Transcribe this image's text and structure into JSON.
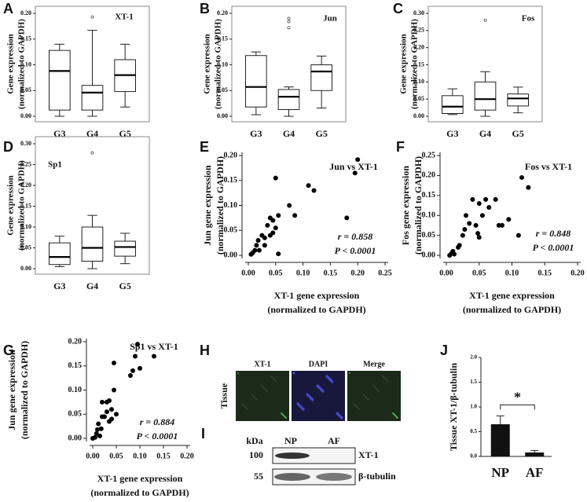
{
  "chart_data": [
    {
      "type": "box",
      "panel": "A",
      "title": "XT-1",
      "ylabel": [
        "Gene expression",
        "(normalized to GAPDH)"
      ],
      "categories": [
        "G3",
        "G4",
        "G5"
      ],
      "boxes": [
        {
          "whislo": 0.0,
          "q1": 0.012,
          "med": 0.088,
          "q3": 0.128,
          "whishi": 0.14,
          "fliers": []
        },
        {
          "whislo": 0.0,
          "q1": 0.012,
          "med": 0.046,
          "q3": 0.06,
          "whishi": 0.167,
          "fliers": [
            0.193
          ]
        },
        {
          "whislo": 0.018,
          "q1": 0.048,
          "med": 0.08,
          "q3": 0.11,
          "whishi": 0.14,
          "fliers": []
        }
      ],
      "ylim": [
        0,
        0.2
      ],
      "yticks": [
        {
          "value": 0,
          "label": "0.00"
        },
        {
          "value": 0.05,
          "label": "0.05"
        },
        {
          "value": 0.1,
          "label": "0.10"
        },
        {
          "value": 0.15,
          "label": "0.15"
        },
        {
          "value": 0.2,
          "label": "0.20"
        }
      ]
    },
    {
      "type": "box",
      "panel": "B",
      "title": "Jun",
      "ylabel": [
        "Gene expression",
        "(normalized to GAPDH)"
      ],
      "categories": [
        "G3",
        "G4",
        "G5"
      ],
      "boxes": [
        {
          "whislo": 0.003,
          "q1": 0.018,
          "med": 0.057,
          "q3": 0.118,
          "whishi": 0.125,
          "fliers": []
        },
        {
          "whislo": 0.0,
          "q1": 0.013,
          "med": 0.038,
          "q3": 0.052,
          "whishi": 0.057,
          "fliers": [
            0.19,
            0.184,
            0.172
          ]
        },
        {
          "whislo": 0.016,
          "q1": 0.05,
          "med": 0.087,
          "q3": 0.1,
          "whishi": 0.117,
          "fliers": []
        }
      ],
      "ylim": [
        0,
        0.2
      ],
      "yticks": [
        {
          "value": 0,
          "label": "0.00"
        },
        {
          "value": 0.05,
          "label": "0.05"
        },
        {
          "value": 0.1,
          "label": "0.10"
        },
        {
          "value": 0.15,
          "label": "0.15"
        },
        {
          "value": 0.2,
          "label": "0.20"
        }
      ]
    },
    {
      "type": "box",
      "panel": "C",
      "title": "Fos",
      "ylabel": [
        "Gene expression",
        "(normalized to GAPDH)"
      ],
      "categories": [
        "G3",
        "G4",
        "G5"
      ],
      "boxes": [
        {
          "whislo": 0.005,
          "q1": 0.008,
          "med": 0.028,
          "q3": 0.06,
          "whishi": 0.08,
          "fliers": []
        },
        {
          "whislo": 0.0,
          "q1": 0.018,
          "med": 0.05,
          "q3": 0.1,
          "whishi": 0.13,
          "fliers": [
            0.28
          ]
        },
        {
          "whislo": 0.01,
          "q1": 0.03,
          "med": 0.052,
          "q3": 0.065,
          "whishi": 0.085,
          "fliers": []
        }
      ],
      "ylim": [
        0,
        0.3
      ],
      "yticks": [
        {
          "value": 0,
          "label": "0.00"
        },
        {
          "value": 0.05,
          "label": "0.05"
        },
        {
          "value": 0.1,
          "label": "0.10"
        },
        {
          "value": 0.15,
          "label": "0.15"
        },
        {
          "value": 0.2,
          "label": "0.20"
        },
        {
          "value": 0.25,
          "label": "0.25"
        },
        {
          "value": 0.3,
          "label": "0.30"
        }
      ]
    },
    {
      "type": "box",
      "panel": "D",
      "title": "Sp1",
      "ylabel": [
        "Gene expression",
        "(normalized to GAPDH)"
      ],
      "categories": [
        "G3",
        "G4",
        "G5"
      ],
      "boxes": [
        {
          "whislo": 0.005,
          "q1": 0.01,
          "med": 0.028,
          "q3": 0.062,
          "whishi": 0.078,
          "fliers": []
        },
        {
          "whislo": 0.0,
          "q1": 0.018,
          "med": 0.05,
          "q3": 0.1,
          "whishi": 0.128,
          "fliers": [
            0.278
          ]
        },
        {
          "whislo": 0.012,
          "q1": 0.03,
          "med": 0.052,
          "q3": 0.066,
          "whishi": 0.085,
          "fliers": []
        }
      ],
      "ylim": [
        0,
        0.3
      ],
      "yticks": [
        {
          "value": 0,
          "label": "0.00"
        },
        {
          "value": 0.05,
          "label": "0.05"
        },
        {
          "value": 0.1,
          "label": "0.10"
        },
        {
          "value": 0.15,
          "label": "0.15"
        },
        {
          "value": 0.2,
          "label": "0.20"
        },
        {
          "value": 0.25,
          "label": "0.25"
        },
        {
          "value": 0.3,
          "label": "0.30"
        }
      ]
    },
    {
      "type": "scatter",
      "panel": "E",
      "title": "Jun vs XT-1",
      "annotations": [
        "r = 0.858",
        "P < 0.0001"
      ],
      "xlabel": [
        "XT-1 gene expression",
        "(normalized to GAPDH)"
      ],
      "ylabel": [
        "Jun gene expression",
        "(normalized to GAPDH)"
      ],
      "x": [
        0.005,
        0.008,
        0.012,
        0.015,
        0.018,
        0.02,
        0.025,
        0.03,
        0.035,
        0.04,
        0.045,
        0.045,
        0.05,
        0.05,
        0.055,
        0.055,
        0.075,
        0.085,
        0.11,
        0.12,
        0.18,
        0.195,
        0.2,
        0.04,
        0.03
      ],
      "values": [
        0.002,
        0.005,
        0.01,
        0.02,
        0.03,
        0.01,
        0.04,
        0.02,
        0.06,
        0.075,
        0.07,
        0.045,
        0.155,
        0.055,
        0.003,
        0.08,
        0.1,
        0.08,
        0.14,
        0.13,
        0.075,
        0.165,
        0.192,
        0.04,
        0.035
      ],
      "xlim": [
        0,
        0.25
      ],
      "xticks": [
        {
          "value": 0,
          "label": "0.00"
        },
        {
          "value": 0.05,
          "label": "0.05"
        },
        {
          "value": 0.1,
          "label": "0.10"
        },
        {
          "value": 0.15,
          "label": "0.15"
        },
        {
          "value": 0.2,
          "label": "0.20"
        },
        {
          "value": 0.25,
          "label": "0.25"
        }
      ],
      "ylim": [
        0,
        0.2
      ],
      "yticks": [
        {
          "value": 0,
          "label": "0.00"
        },
        {
          "value": 0.05,
          "label": "0.05"
        },
        {
          "value": 0.1,
          "label": "0.10"
        },
        {
          "value": 0.15,
          "label": "0.15"
        },
        {
          "value": 0.2,
          "label": "0.20"
        }
      ]
    },
    {
      "type": "scatter",
      "panel": "F",
      "title": "Fos vs XT-1",
      "annotations": [
        "r = 0.848",
        "P < 0.0001"
      ],
      "xlabel": [
        "XT-1 gene expression",
        "(normalized to GAPDH)"
      ],
      "ylabel": [
        "Fos gene expression",
        "(normalized to GAPDH)"
      ],
      "x": [
        0.005,
        0.008,
        0.01,
        0.012,
        0.018,
        0.02,
        0.025,
        0.028,
        0.03,
        0.035,
        0.04,
        0.045,
        0.048,
        0.05,
        0.05,
        0.055,
        0.06,
        0.065,
        0.075,
        0.08,
        0.085,
        0.095,
        0.11,
        0.115,
        0.125
      ],
      "values": [
        0.0,
        0.005,
        0.01,
        0.003,
        0.02,
        0.025,
        0.05,
        0.065,
        0.1,
        0.08,
        0.14,
        0.075,
        0.055,
        0.045,
        0.13,
        0.1,
        0.14,
        0.12,
        0.14,
        0.075,
        0.075,
        0.09,
        0.05,
        0.195,
        0.17
      ],
      "xlim": [
        0,
        0.2
      ],
      "xticks": [
        {
          "value": 0,
          "label": "0.00"
        },
        {
          "value": 0.05,
          "label": "0.05"
        },
        {
          "value": 0.1,
          "label": "0.10"
        },
        {
          "value": 0.15,
          "label": "0.15"
        },
        {
          "value": 0.2,
          "label": "0.20"
        }
      ],
      "ylim": [
        0,
        0.25
      ],
      "yticks": [
        {
          "value": 0,
          "label": "0.00"
        },
        {
          "value": 0.05,
          "label": "0.05"
        },
        {
          "value": 0.1,
          "label": "0.10"
        },
        {
          "value": 0.15,
          "label": "0.15"
        },
        {
          "value": 0.2,
          "label": "0.20"
        },
        {
          "value": 0.25,
          "label": "0.25"
        }
      ]
    },
    {
      "type": "scatter",
      "panel": "G",
      "title": "Sp1 vs XT-1",
      "annotations": [
        "r = 0.884",
        "P < 0.0001"
      ],
      "xlabel": [
        "XT-1 gene expression",
        "(normalized to GAPDH)"
      ],
      "ylabel": [
        "Jun gene expression",
        "(normalized to GAPDH)"
      ],
      "x": [
        0.0,
        0.005,
        0.008,
        0.01,
        0.012,
        0.015,
        0.018,
        0.02,
        0.025,
        0.03,
        0.03,
        0.035,
        0.04,
        0.04,
        0.045,
        0.05,
        0.045,
        0.08,
        0.085,
        0.09,
        0.095,
        0.1,
        0.13,
        0.035,
        0.02
      ],
      "values": [
        0.0,
        0.002,
        0.01,
        0.018,
        0.03,
        0.005,
        0.02,
        0.075,
        0.045,
        0.075,
        0.055,
        0.078,
        0.06,
        0.04,
        0.156,
        0.05,
        0.1,
        0.13,
        0.14,
        0.17,
        0.195,
        0.145,
        0.17,
        0.035,
        0.045
      ],
      "xlim": [
        0,
        0.2
      ],
      "xticks": [
        {
          "value": 0,
          "label": "0.00"
        },
        {
          "value": 0.05,
          "label": "0.05"
        },
        {
          "value": 0.1,
          "label": "0.10"
        },
        {
          "value": 0.15,
          "label": "0.15"
        },
        {
          "value": 0.2,
          "label": "0.20"
        }
      ],
      "ylim": [
        0,
        0.2
      ],
      "yticks": [
        {
          "value": 0,
          "label": "0.00"
        },
        {
          "value": 0.05,
          "label": "0.05"
        },
        {
          "value": 0.1,
          "label": "0.10"
        },
        {
          "value": 0.15,
          "label": "0.15"
        },
        {
          "value": 0.2,
          "label": "0.20"
        }
      ]
    },
    {
      "type": "image",
      "panel": "H",
      "column_labels": [
        "XT-1",
        "DAPI",
        "Merge"
      ],
      "row_label": "Tissue"
    },
    {
      "type": "blot",
      "panel": "I",
      "unit_label": "kDa",
      "lanes": [
        "NP",
        "AF"
      ],
      "markers": [
        "100",
        "55"
      ],
      "bands": [
        "XT-1",
        "β-tubulin"
      ]
    },
    {
      "type": "bar",
      "panel": "J",
      "ylabel": "Tissue XT-1/β-tubulin",
      "categories": [
        "NP",
        "AF"
      ],
      "values": [
        0.65,
        0.08
      ],
      "errors": [
        0.17,
        0.04
      ],
      "color": "#111111",
      "significance": "*",
      "ylim": [
        0,
        2
      ],
      "yticks": [
        {
          "value": 0,
          "label": "0.0"
        },
        {
          "value": 0.5,
          "label": "0.5"
        },
        {
          "value": 1,
          "label": "1.0"
        },
        {
          "value": 1.5,
          "label": "1.5"
        },
        {
          "value": 2,
          "label": "2.0"
        }
      ]
    }
  ]
}
